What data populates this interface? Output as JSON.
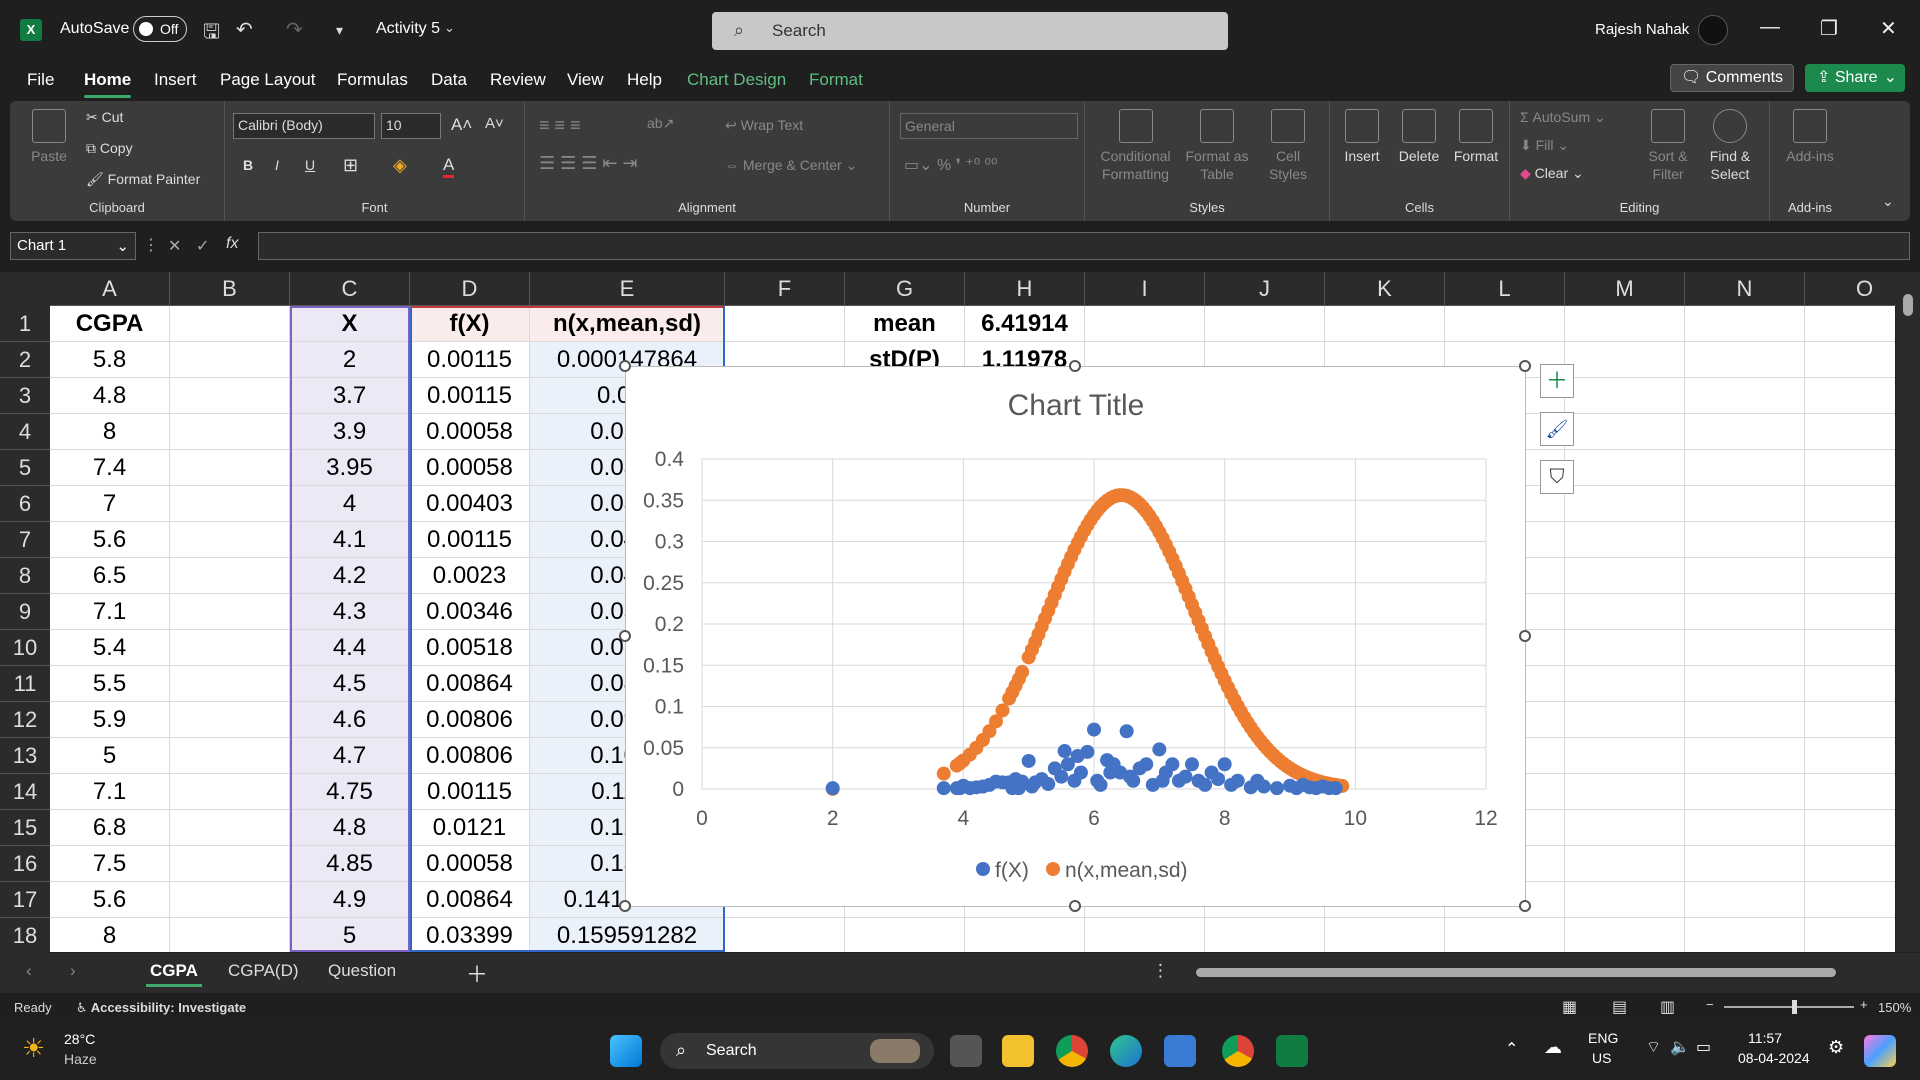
{
  "titlebar": {
    "autosave_label": "AutoSave",
    "autosave_state": "Off",
    "doc_name": "Activity 5",
    "search_placeholder": "Search",
    "user_name": "Rajesh Nahak"
  },
  "menu": {
    "items": [
      "File",
      "Home",
      "Insert",
      "Page Layout",
      "Formulas",
      "Data",
      "Review",
      "View",
      "Help",
      "Chart Design",
      "Format"
    ],
    "active": "Home",
    "comments_label": "Comments",
    "share_label": "Share"
  },
  "ribbon": {
    "clipboard": {
      "paste": "Paste",
      "cut": "Cut",
      "copy": "Copy",
      "format_painter": "Format Painter",
      "label": "Clipboard"
    },
    "font": {
      "name": "Calibri (Body)",
      "size": "10",
      "label": "Font"
    },
    "alignment": {
      "wrap_text": "Wrap Text",
      "merge_center": "Merge & Center",
      "label": "Alignment"
    },
    "number": {
      "format": "General",
      "label": "Number"
    },
    "styles": {
      "conditional": "Conditional Formatting",
      "format_table": "Format as Table",
      "cell_styles": "Cell Styles",
      "label": "Styles"
    },
    "cells": {
      "insert": "Insert",
      "delete": "Delete",
      "format": "Format",
      "label": "Cells"
    },
    "editing": {
      "autosum": "AutoSum",
      "fill": "Fill",
      "clear": "Clear",
      "sort_filter": "Sort & Filter",
      "find_select": "Find & Select",
      "label": "Editing"
    },
    "addins": {
      "addins": "Add-ins",
      "label": "Add-ins"
    }
  },
  "formula_bar": {
    "name_box": "Chart 1",
    "fx": "fx",
    "formula": ""
  },
  "grid": {
    "columns": [
      "A",
      "B",
      "C",
      "D",
      "E",
      "F",
      "G",
      "H",
      "I",
      "J",
      "K",
      "L",
      "M",
      "N",
      "O"
    ],
    "rows": [
      "1",
      "2",
      "3",
      "4",
      "5",
      "6",
      "7",
      "8",
      "9",
      "10",
      "11",
      "12",
      "13",
      "14",
      "15",
      "16",
      "17",
      "18"
    ],
    "colA": [
      "CGPA",
      "5.8",
      "4.8",
      "8",
      "7.4",
      "7",
      "5.6",
      "6.5",
      "7.1",
      "5.4",
      "5.5",
      "5.9",
      "5",
      "7.1",
      "6.8",
      "7.5",
      "5.6",
      "8"
    ],
    "colC": [
      "X",
      "2",
      "3.7",
      "3.9",
      "3.95",
      "4",
      "4.1",
      "4.2",
      "4.3",
      "4.4",
      "4.5",
      "4.6",
      "4.7",
      "4.75",
      "4.8",
      "4.85",
      "4.9",
      "5"
    ],
    "colD": [
      "f(X)",
      "0.00115",
      "0.00115",
      "0.00058",
      "0.00058",
      "0.00403",
      "0.00115",
      "0.0023",
      "0.00346",
      "0.00518",
      "0.00864",
      "0.00806",
      "0.00806",
      "0.00115",
      "0.0121",
      "0.00058",
      "0.00864",
      "0.03399"
    ],
    "colE": [
      "n(x,mean,sd)",
      "0.000147864",
      "0.018",
      "0.0283",
      "0.0313",
      "0.0345",
      "0.0417",
      "0.0499",
      "0.0594",
      "0.0701",
      "0.0820",
      "0.0952",
      "0.1096",
      "0.1173",
      "0.1252",
      "0.1334",
      "0.14187713",
      "0.159591282"
    ],
    "colG": [
      "mean",
      "stD(P)"
    ],
    "colH": [
      "6.41914",
      "1.11978"
    ]
  },
  "chart_data": {
    "type": "scatter",
    "title": "Chart Title",
    "xlim": [
      0,
      12
    ],
    "ylim": [
      0,
      0.4
    ],
    "xticks": [
      0,
      2,
      4,
      6,
      8,
      10,
      12
    ],
    "yticks": [
      0,
      0.05,
      0.1,
      0.15,
      0.2,
      0.25,
      0.3,
      0.35,
      0.4
    ],
    "ytick_labels": [
      "0",
      "0.05",
      "0.1",
      "0.15",
      "0.2",
      "0.25",
      "0.3",
      "0.35",
      "0.4"
    ],
    "legend_position": "bottom",
    "grid": true,
    "series": [
      {
        "name": "f(X)",
        "color": "#4472c4",
        "points": [
          [
            2,
            0.001
          ],
          [
            3.7,
            0.001
          ],
          [
            3.9,
            0.001
          ],
          [
            3.95,
            0.001
          ],
          [
            4,
            0.004
          ],
          [
            4.1,
            0.001
          ],
          [
            4.2,
            0.002
          ],
          [
            4.3,
            0.003
          ],
          [
            4.4,
            0.005
          ],
          [
            4.5,
            0.009
          ],
          [
            4.6,
            0.008
          ],
          [
            4.7,
            0.008
          ],
          [
            4.75,
            0.001
          ],
          [
            4.8,
            0.012
          ],
          [
            4.85,
            0.001
          ],
          [
            4.9,
            0.009
          ],
          [
            5,
            0.034
          ],
          [
            5.05,
            0.003
          ],
          [
            5.1,
            0.008
          ],
          [
            5.2,
            0.012
          ],
          [
            5.3,
            0.006
          ],
          [
            5.4,
            0.025
          ],
          [
            5.5,
            0.015
          ],
          [
            5.55,
            0.046
          ],
          [
            5.6,
            0.03
          ],
          [
            5.7,
            0.01
          ],
          [
            5.75,
            0.04
          ],
          [
            5.8,
            0.02
          ],
          [
            5.9,
            0.045
          ],
          [
            6,
            0.072
          ],
          [
            6.05,
            0.01
          ],
          [
            6.1,
            0.005
          ],
          [
            6.2,
            0.035
          ],
          [
            6.25,
            0.02
          ],
          [
            6.3,
            0.03
          ],
          [
            6.4,
            0.02
          ],
          [
            6.5,
            0.07
          ],
          [
            6.55,
            0.015
          ],
          [
            6.6,
            0.01
          ],
          [
            6.7,
            0.025
          ],
          [
            6.8,
            0.03
          ],
          [
            6.9,
            0.005
          ],
          [
            7,
            0.048
          ],
          [
            7.05,
            0.01
          ],
          [
            7.1,
            0.02
          ],
          [
            7.2,
            0.03
          ],
          [
            7.3,
            0.01
          ],
          [
            7.4,
            0.015
          ],
          [
            7.5,
            0.03
          ],
          [
            7.6,
            0.01
          ],
          [
            7.7,
            0.005
          ],
          [
            7.8,
            0.02
          ],
          [
            7.9,
            0.012
          ],
          [
            8,
            0.03
          ],
          [
            8.1,
            0.005
          ],
          [
            8.2,
            0.01
          ],
          [
            8.4,
            0.002
          ],
          [
            8.5,
            0.01
          ],
          [
            8.6,
            0.003
          ],
          [
            8.8,
            0.001
          ],
          [
            9,
            0.004
          ],
          [
            9.1,
            0.001
          ],
          [
            9.2,
            0.005
          ],
          [
            9.3,
            0.002
          ],
          [
            9.4,
            0.001
          ],
          [
            9.5,
            0.003
          ],
          [
            9.6,
            0.001
          ],
          [
            9.7,
            0.001
          ]
        ]
      },
      {
        "name": "n(x,mean,sd)",
        "color": "#ed7d31",
        "mean": 6.41914,
        "sd": 1.11978,
        "x": [
          2,
          3.7,
          3.9,
          3.95,
          4,
          4.1,
          4.2,
          4.3,
          4.4,
          4.5,
          4.6,
          4.7,
          4.75,
          4.8,
          4.85,
          4.9,
          5,
          5.05,
          5.1,
          5.15,
          5.2,
          5.25,
          5.3,
          5.35,
          5.4,
          5.45,
          5.5,
          5.55,
          5.6,
          5.65,
          5.7,
          5.75,
          5.8,
          5.85,
          5.9,
          5.95,
          6,
          6.05,
          6.1,
          6.15,
          6.2,
          6.25,
          6.3,
          6.35,
          6.4,
          6.45,
          6.5,
          6.55,
          6.6,
          6.65,
          6.7,
          6.75,
          6.8,
          6.85,
          6.9,
          6.95,
          7,
          7.05,
          7.1,
          7.15,
          7.2,
          7.25,
          7.3,
          7.35,
          7.4,
          7.45,
          7.5,
          7.55,
          7.6,
          7.65,
          7.7,
          7.75,
          7.8,
          7.85,
          7.9,
          7.95,
          8,
          8.05,
          8.1,
          8.15,
          8.2,
          8.25,
          8.3,
          8.35,
          8.4,
          8.45,
          8.5,
          8.55,
          8.6,
          8.65,
          8.7,
          8.75,
          8.8,
          8.85,
          8.9,
          8.95,
          9,
          9.05,
          9.1,
          9.15,
          9.2,
          9.25,
          9.3,
          9.35,
          9.4,
          9.45,
          9.5,
          9.55,
          9.6,
          9.65,
          9.7,
          9.75,
          9.8
        ]
      }
    ]
  },
  "sheets": {
    "tabs": [
      "CGPA",
      "CGPA(D)",
      "Question"
    ],
    "active": "CGPA"
  },
  "status": {
    "ready": "Ready",
    "accessibility": "Accessibility: Investigate",
    "zoom": "150%"
  },
  "taskbar": {
    "weather_temp": "28°C",
    "weather_desc": "Haze",
    "search": "Search",
    "lang": "ENG",
    "region": "US",
    "time": "11:57",
    "date": "08-04-2024"
  }
}
